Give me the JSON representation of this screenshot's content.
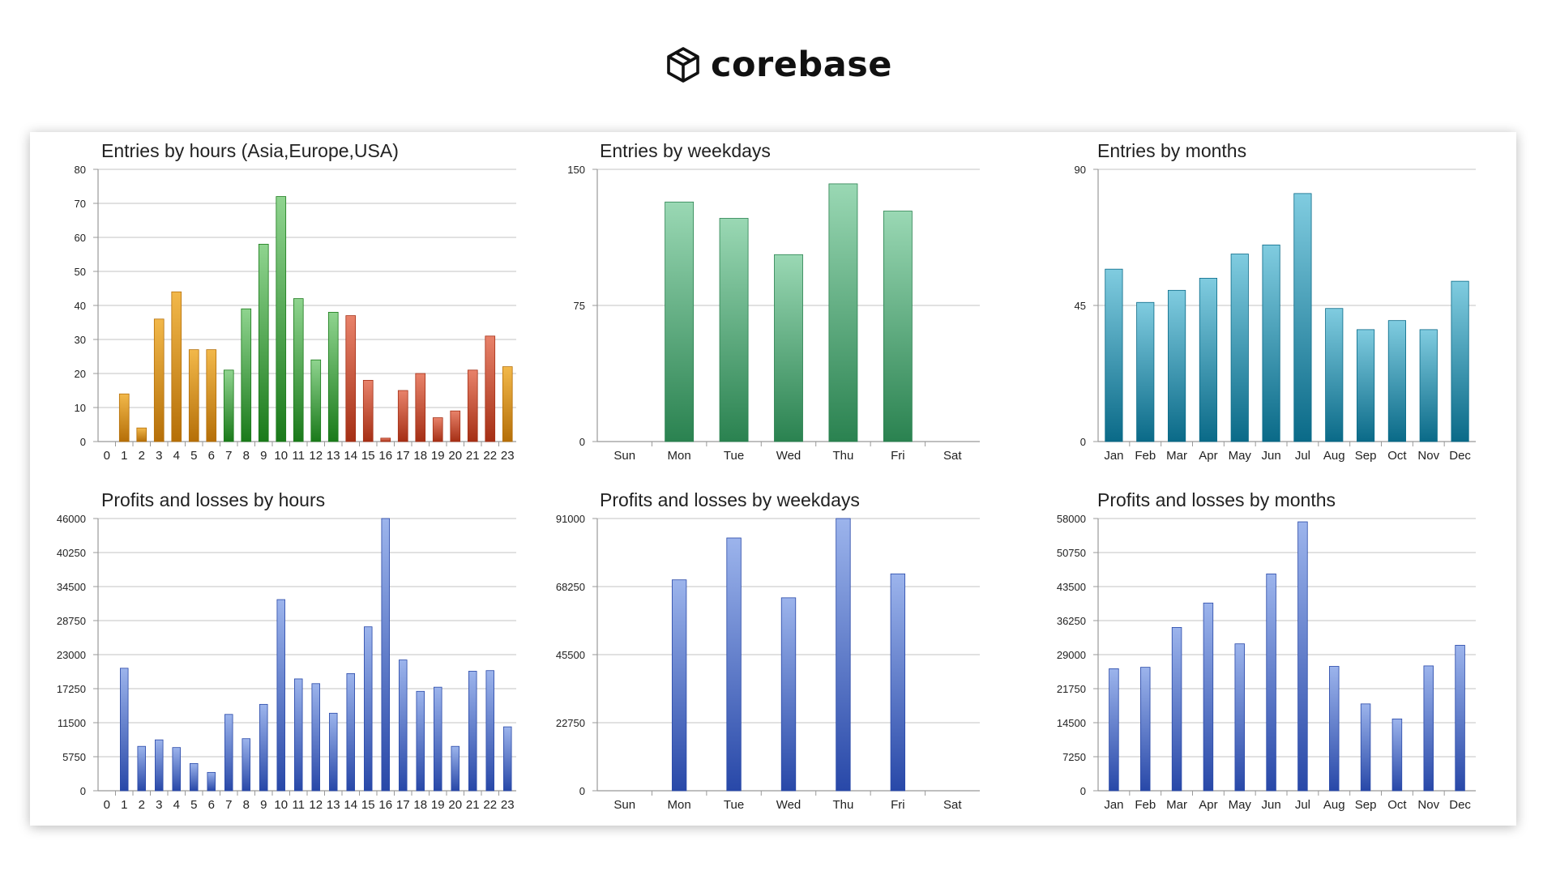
{
  "brand": {
    "name": "corebase",
    "icon": "cube-icon"
  },
  "colors": {
    "orange": [
      "#f2b84a",
      "#b56f08"
    ],
    "green": [
      "#8fd48f",
      "#1a7a1a"
    ],
    "red": [
      "#e8826a",
      "#a52f15"
    ],
    "mint": [
      "#9ad8b4",
      "#2a8250"
    ],
    "teal": [
      "#80cce0",
      "#0a6a88"
    ],
    "blue": [
      "#9cb4ec",
      "#2848a8"
    ]
  },
  "chart_data": [
    {
      "type": "bar",
      "title": "Entries by hours (Asia,Europe,USA)",
      "categories": [
        "0",
        "1",
        "2",
        "3",
        "4",
        "5",
        "6",
        "7",
        "8",
        "9",
        "10",
        "11",
        "12",
        "13",
        "14",
        "15",
        "16",
        "17",
        "18",
        "19",
        "20",
        "21",
        "22",
        "23"
      ],
      "values": [
        0,
        14,
        4,
        36,
        44,
        27,
        27,
        21,
        39,
        58,
        72,
        42,
        24,
        38,
        37,
        18,
        1,
        15,
        20,
        7,
        9,
        21,
        31,
        22
      ],
      "bar_colors": [
        "orange",
        "orange",
        "orange",
        "orange",
        "orange",
        "orange",
        "orange",
        "green",
        "green",
        "green",
        "green",
        "green",
        "green",
        "green",
        "red",
        "red",
        "red",
        "red",
        "red",
        "red",
        "red",
        "red",
        "red",
        "orange"
      ],
      "ylim": [
        0,
        80
      ],
      "yticks": [
        "0",
        "10",
        "20",
        "30",
        "40",
        "50",
        "60",
        "70",
        "80"
      ],
      "grid": true
    },
    {
      "type": "bar",
      "title": "Entries by weekdays",
      "categories": [
        "Sun",
        "Mon",
        "Tue",
        "Wed",
        "Thu",
        "Fri",
        "Sat"
      ],
      "values": [
        0,
        132,
        123,
        103,
        142,
        127,
        0
      ],
      "color": "mint",
      "ylim": [
        0,
        150
      ],
      "yticks": [
        "0",
        "75",
        "150"
      ],
      "grid": true
    },
    {
      "type": "bar",
      "title": "Entries by months",
      "categories": [
        "Jan",
        "Feb",
        "Mar",
        "Apr",
        "May",
        "Jun",
        "Jul",
        "Aug",
        "Sep",
        "Oct",
        "Nov",
        "Dec"
      ],
      "values": [
        57,
        46,
        50,
        54,
        62,
        65,
        82,
        44,
        37,
        40,
        37,
        53
      ],
      "color": "teal",
      "ylim": [
        0,
        90
      ],
      "yticks": [
        "0",
        "45",
        "90"
      ],
      "grid": true
    },
    {
      "type": "bar",
      "title": "Profits and losses by hours",
      "categories": [
        "0",
        "1",
        "2",
        "3",
        "4",
        "5",
        "6",
        "7",
        "8",
        "9",
        "10",
        "11",
        "12",
        "13",
        "14",
        "15",
        "16",
        "17",
        "18",
        "19",
        "20",
        "21",
        "22",
        "23"
      ],
      "values": [
        0,
        20700,
        7500,
        8600,
        7300,
        4600,
        3100,
        12900,
        8800,
        14600,
        32300,
        18900,
        18100,
        13100,
        19800,
        27700,
        46000,
        22100,
        16800,
        17500,
        7500,
        20200,
        20300,
        10800
      ],
      "color": "blue",
      "ylim": [
        0,
        46000
      ],
      "yticks": [
        "0",
        "5750",
        "11500",
        "17250",
        "23000",
        "28750",
        "34500",
        "40250",
        "46000"
      ],
      "grid": true
    },
    {
      "type": "bar",
      "title": "Profits and losses by weekdays",
      "categories": [
        "Sun",
        "Mon",
        "Tue",
        "Wed",
        "Thu",
        "Fri",
        "Sat"
      ],
      "values": [
        0,
        70500,
        84500,
        64500,
        91000,
        72500,
        0
      ],
      "color": "blue",
      "ylim": [
        0,
        91000
      ],
      "yticks": [
        "0",
        "22750",
        "45500",
        "68250",
        "91000"
      ],
      "grid": true
    },
    {
      "type": "bar",
      "title": "Profits and losses by months",
      "categories": [
        "Jan",
        "Feb",
        "Mar",
        "Apr",
        "May",
        "Jun",
        "Jul",
        "Aug",
        "Sep",
        "Oct",
        "Nov",
        "Dec"
      ],
      "values": [
        26000,
        26300,
        34800,
        40000,
        31300,
        46200,
        57300,
        26500,
        18500,
        15300,
        26600,
        31000
      ],
      "color": "blue",
      "ylim": [
        0,
        58000
      ],
      "yticks": [
        "0",
        "7250",
        "14500",
        "21750",
        "29000",
        "36250",
        "43500",
        "50750",
        "58000"
      ],
      "grid": true
    }
  ]
}
